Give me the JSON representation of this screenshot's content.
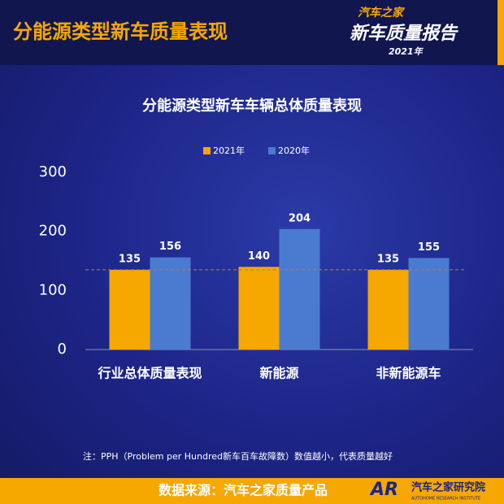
{
  "header": {
    "title": "分能源类型新车质量表现",
    "logo_top": "汽车之家",
    "logo_main": "新车质量报告",
    "logo_year": "2021年"
  },
  "chart_data": {
    "type": "bar",
    "title": "分能源类型新车车辆总体质量表现",
    "categories": [
      "行业总体质量表现",
      "新能源",
      "非新能源车"
    ],
    "series": [
      {
        "name": "2021年",
        "color": "#f6a700",
        "values": [
          135,
          140,
          135
        ]
      },
      {
        "name": "2020年",
        "color": "#4a7bd0",
        "values": [
          156,
          204,
          155
        ]
      }
    ],
    "ylim": [
      0,
      300
    ],
    "yticks": [
      0,
      100,
      200,
      300
    ],
    "reference_line": 135,
    "legend": "top"
  },
  "note": "注：PPH（Problem per Hundred新车百车故障数）数值越小，代表质量越好",
  "footer": {
    "source": "数据来源：汽车之家质量产品",
    "logo_mark": "AR",
    "logo_name": "汽车之家研究院",
    "logo_sub": "AUTOHOME RESEARCH INSTITUTE"
  }
}
